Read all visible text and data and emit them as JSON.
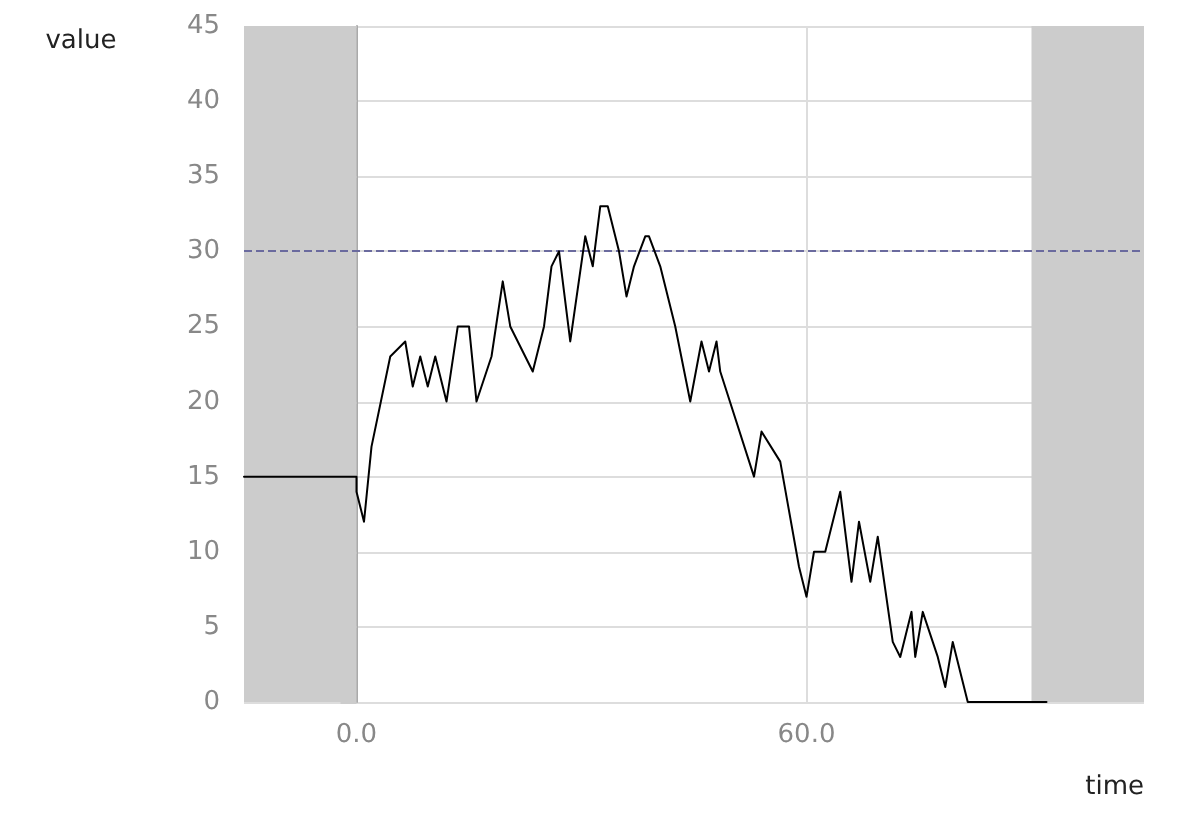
{
  "chart_data": {
    "type": "line",
    "xlabel": "time",
    "ylabel": "value",
    "xlim": [
      -15,
      105
    ],
    "xticks": [
      {
        "value": 0,
        "label": "0.0"
      },
      {
        "value": 60,
        "label": "60.0"
      }
    ],
    "ylim": [
      0,
      45
    ],
    "yticks": [
      0,
      5,
      10,
      15,
      20,
      25,
      30,
      35,
      40,
      45
    ],
    "grid": true,
    "marker": "none",
    "line_style": "solid",
    "series": [
      {
        "color": "#000000",
        "x": [
          -15,
          0,
          0,
          1,
          2,
          4.5,
          6.5,
          7.5,
          8.5,
          9.5,
          10.5,
          12,
          13.5,
          15,
          16,
          18,
          19.5,
          20.5,
          22.5,
          23.5,
          25,
          26,
          27,
          28.5,
          30.5,
          31.5,
          32.5,
          33.5,
          35,
          36,
          37,
          38.5,
          39,
          40.5,
          42.5,
          44.5,
          46,
          47,
          48,
          48.5,
          53,
          54,
          56.5,
          59,
          60,
          61,
          62.5,
          64.5,
          66,
          67,
          68.5,
          69.5,
          71.5,
          72.5,
          74,
          74.5,
          75.5,
          77.5,
          78.5,
          79.5,
          81.5,
          92
        ],
        "values": [
          15,
          15,
          14,
          12,
          17,
          23,
          24,
          21,
          23,
          21,
          23,
          20,
          25,
          25,
          20,
          23,
          28,
          25,
          23,
          22,
          25,
          29,
          30,
          24,
          31,
          29,
          33,
          33,
          30,
          27,
          29,
          31,
          31,
          29,
          25,
          20,
          24,
          22,
          24,
          22,
          15,
          18,
          16,
          9,
          7,
          10,
          10,
          14,
          8,
          12,
          8,
          11,
          4,
          3,
          6,
          3,
          6,
          3,
          1,
          4,
          0,
          0
        ]
      }
    ],
    "ref_lines": [
      {
        "axis": "y",
        "value": 30,
        "color": "#6a6a9e",
        "line_style": "dashed"
      }
    ],
    "bands": [
      {
        "axis": "x",
        "from": -15,
        "to": 0,
        "color": "#cccccc"
      },
      {
        "axis": "x",
        "from": 90,
        "to": 105,
        "color": "#cccccc"
      }
    ]
  }
}
